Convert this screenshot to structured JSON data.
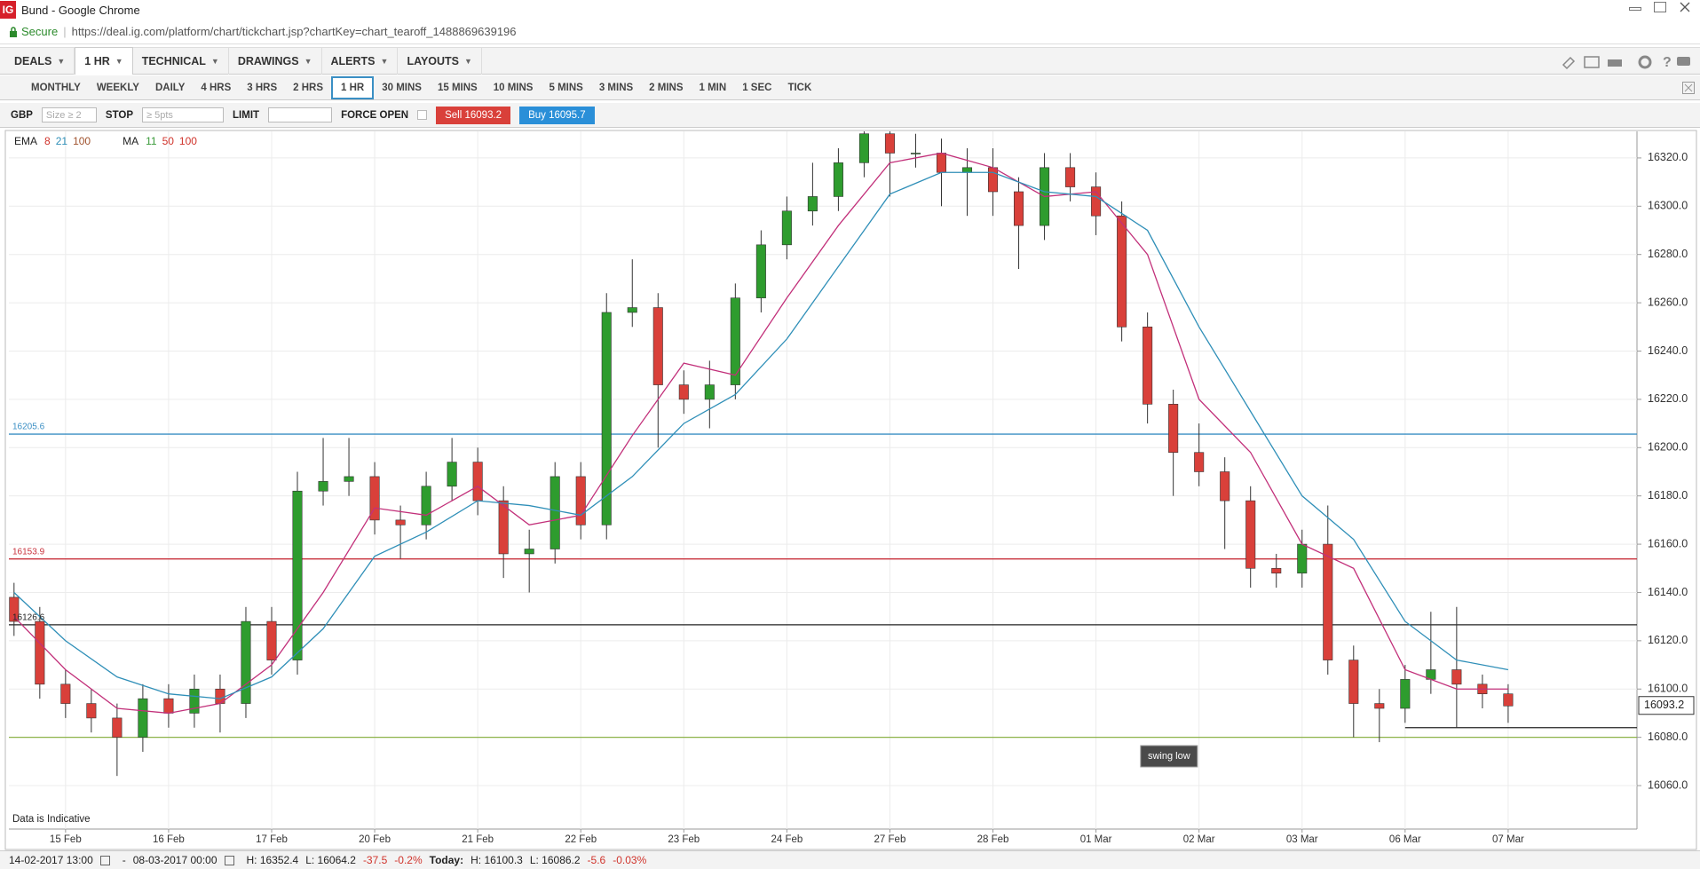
{
  "window": {
    "title": "Bund - Google Chrome",
    "logo": "IG",
    "secure": "Secure",
    "url": "https://deal.ig.com/platform/chart/tickchart.jsp?chartKey=chart_tearoff_1488869639196"
  },
  "menu": {
    "items": [
      "DEALS",
      "1 HR",
      "TECHNICAL",
      "DRAWINGS",
      "ALERTS",
      "LAYOUTS"
    ],
    "active": 1
  },
  "timeframes": {
    "items": [
      "MONTHLY",
      "WEEKLY",
      "DAILY",
      "4 HRS",
      "3 HRS",
      "2 HRS",
      "1 HR",
      "30 MINS",
      "15 MINS",
      "10 MINS",
      "5 MINS",
      "3 MINS",
      "2 MINS",
      "1 MIN",
      "1 SEC",
      "TICK"
    ],
    "selected": 6
  },
  "order": {
    "currency": "GBP",
    "size_placeholder": "Size ≥ 2",
    "stop": "STOP",
    "stop_placeholder": "≥ 5pts",
    "limit": "LIMIT",
    "force_open": "FORCE OPEN",
    "sell": "Sell 16093.2",
    "buy": "Buy 16095.7"
  },
  "chart_data": {
    "type": "candlestick",
    "indicators": [
      {
        "name": "EMA",
        "params": [
          {
            "text": "8",
            "color": "#d0342c"
          },
          {
            "text": "21",
            "color": "#2f8fb8"
          },
          {
            "text": "100",
            "color": "#a0522d"
          }
        ]
      },
      {
        "name": "MA",
        "params": [
          {
            "text": "11",
            "color": "#3a9a3a"
          },
          {
            "text": "50",
            "color": "#d0342c"
          },
          {
            "text": "100",
            "color": "#d0342c"
          }
        ]
      }
    ],
    "open": [
      16138,
      16128,
      16102,
      16094,
      16088,
      16080,
      16096,
      16090,
      16100,
      16094,
      16128,
      16112,
      16182,
      16186,
      16188,
      16170,
      16168,
      16184,
      16194,
      16178,
      16156,
      16158,
      16188,
      16168,
      16256,
      16258,
      16226,
      16220,
      16226,
      16262,
      16284,
      16298,
      16304,
      16318,
      16330,
      16322,
      16322,
      16314,
      16316,
      16306,
      16292,
      16316,
      16308,
      16296,
      16250,
      16218,
      16198,
      16190,
      16178,
      16150,
      16148,
      16160,
      16112,
      16094,
      16092,
      16104,
      16108,
      16102,
      16098
    ],
    "high": [
      16144,
      16134,
      16108,
      16100,
      16094,
      16102,
      16102,
      16106,
      16106,
      16134,
      16134,
      16190,
      16204,
      16204,
      16194,
      16176,
      16190,
      16204,
      16200,
      16184,
      16166,
      16194,
      16194,
      16264,
      16278,
      16264,
      16232,
      16236,
      16268,
      16290,
      16304,
      16318,
      16324,
      16336,
      16336,
      16330,
      16328,
      16324,
      16324,
      16312,
      16322,
      16322,
      16314,
      16302,
      16256,
      16224,
      16210,
      16196,
      16184,
      16156,
      16166,
      16176,
      16118,
      16100,
      16110,
      16132,
      16134,
      16106,
      16102
    ],
    "low": [
      16122,
      16096,
      16088,
      16082,
      16064,
      16074,
      16084,
      16084,
      16082,
      16088,
      16106,
      16106,
      16176,
      16180,
      16164,
      16154,
      16162,
      16178,
      16172,
      16146,
      16140,
      16152,
      16162,
      16162,
      16250,
      16200,
      16214,
      16208,
      16220,
      16256,
      16278,
      16292,
      16298,
      16312,
      16304,
      16316,
      16300,
      16296,
      16296,
      16274,
      16286,
      16302,
      16288,
      16244,
      16210,
      16180,
      16184,
      16158,
      16142,
      16142,
      16142,
      16106,
      16080,
      16078,
      16086,
      16098,
      16084,
      16092,
      16086
    ],
    "close": [
      16128,
      16102,
      16094,
      16088,
      16080,
      16096,
      16090,
      16100,
      16094,
      16128,
      16112,
      16182,
      16186,
      16188,
      16170,
      16168,
      16184,
      16194,
      16178,
      16156,
      16158,
      16188,
      16168,
      16256,
      16258,
      16226,
      16220,
      16226,
      16262,
      16284,
      16298,
      16304,
      16318,
      16330,
      16322,
      16322,
      16314,
      16316,
      16306,
      16292,
      16316,
      16308,
      16296,
      16250,
      16218,
      16198,
      16190,
      16178,
      16150,
      16148,
      16160,
      16112,
      16094,
      16092,
      16104,
      16108,
      16102,
      16098,
      16093
    ],
    "up_color": "#2e9c2e",
    "down_color": "#d9403a",
    "series": [
      {
        "color": "#c2307a",
        "x": [
          0,
          2,
          4,
          6,
          8,
          10,
          12,
          14,
          16,
          18,
          20,
          22,
          24,
          26,
          28,
          30,
          32,
          34,
          36,
          38,
          40,
          42,
          44,
          46,
          48,
          50,
          52,
          54,
          56,
          58
        ],
        "values": [
          16130,
          16108,
          16092,
          16090,
          16094,
          16110,
          16140,
          16175,
          16172,
          16184,
          16168,
          16172,
          16205,
          16235,
          16230,
          16262,
          16292,
          16318,
          16322,
          16316,
          16304,
          16306,
          16280,
          16220,
          16198,
          16160,
          16150,
          16108,
          16100,
          16100
        ]
      },
      {
        "color": "#2f8fb8",
        "x": [
          0,
          2,
          4,
          6,
          8,
          10,
          12,
          14,
          16,
          18,
          20,
          22,
          24,
          26,
          28,
          30,
          32,
          34,
          36,
          38,
          40,
          42,
          44,
          46,
          48,
          50,
          52,
          54,
          56,
          58
        ],
        "values": [
          16140,
          16120,
          16105,
          16098,
          16096,
          16105,
          16125,
          16155,
          16165,
          16178,
          16176,
          16172,
          16188,
          16210,
          16222,
          16245,
          16275,
          16305,
          16314,
          16314,
          16306,
          16304,
          16290,
          16250,
          16215,
          16180,
          16162,
          16128,
          16112,
          16108
        ]
      }
    ],
    "xlim": [
      -0.2,
      63
    ],
    "xticks": [
      {
        "value": 2,
        "label": "15 Feb"
      },
      {
        "value": 6,
        "label": "16 Feb"
      },
      {
        "value": 10,
        "label": "17 Feb"
      },
      {
        "value": 14,
        "label": "20 Feb"
      },
      {
        "value": 18,
        "label": "21 Feb"
      },
      {
        "value": 22,
        "label": "22 Feb"
      },
      {
        "value": 26,
        "label": "23 Feb"
      },
      {
        "value": 30,
        "label": "24 Feb"
      },
      {
        "value": 34,
        "label": "27 Feb"
      },
      {
        "value": 38,
        "label": "28 Feb"
      },
      {
        "value": 42,
        "label": "01 Mar"
      },
      {
        "value": 46,
        "label": "02 Mar"
      },
      {
        "value": 50,
        "label": "03 Mar"
      },
      {
        "value": 54,
        "label": "06 Mar"
      },
      {
        "value": 58,
        "label": "07 Mar"
      }
    ],
    "ylim": [
      16042,
      16331
    ],
    "yticks": [
      {
        "value": 16060,
        "label": "16060.0"
      },
      {
        "value": 16080,
        "label": "16080.0"
      },
      {
        "value": 16100,
        "label": "16100.0"
      },
      {
        "value": 16120,
        "label": "16120.0"
      },
      {
        "value": 16140,
        "label": "16140.0"
      },
      {
        "value": 16160,
        "label": "16160.0"
      },
      {
        "value": 16180,
        "label": "16180.0"
      },
      {
        "value": 16200,
        "label": "16200.0"
      },
      {
        "value": 16220,
        "label": "16220.0"
      },
      {
        "value": 16240,
        "label": "16240.0"
      },
      {
        "value": 16260,
        "label": "16260.0"
      },
      {
        "value": 16280,
        "label": "16280.0"
      },
      {
        "value": 16300,
        "label": "16300.0"
      },
      {
        "value": 16320,
        "label": "16320.0"
      }
    ],
    "grid": true,
    "levels": [
      {
        "value": 16205.6,
        "color": "#3b8fc4",
        "labeled": true
      },
      {
        "value": 16153.9,
        "color": "#c8323c",
        "labeled": true
      },
      {
        "value": 16126.6,
        "color": "#222222",
        "labeled": true
      },
      {
        "value": 16080,
        "color": "#8db34a",
        "labeled": false
      }
    ],
    "swing_low": {
      "value": 16084,
      "from": 54,
      "color": "#222222",
      "text": "swing low"
    },
    "last": 16093.2,
    "notice": "Data is Indicative"
  },
  "status": {
    "from": "14-02-2017 13:00",
    "dash": "-",
    "to": "08-03-2017 00:00",
    "high": "H: 16352.4",
    "low": "L: 16064.2",
    "change": "-37.5",
    "change_pct": "-0.2%",
    "today": "Today:",
    "today_high": "H: 16100.3",
    "today_low": "L: 16086.2",
    "today_change": "-5.6",
    "today_change_pct": "-0.03%"
  }
}
